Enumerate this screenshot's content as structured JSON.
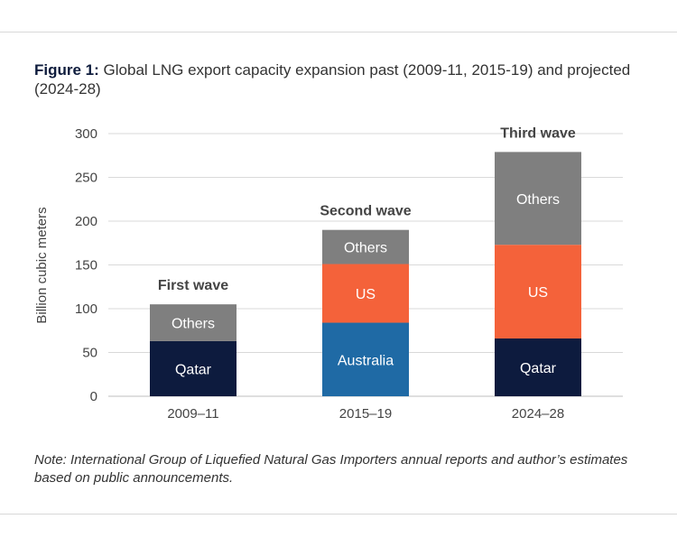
{
  "caption": {
    "label": "Figure 1:",
    "text": "Global LNG export capacity expansion past (2009-11, 2015-19) and projected (2024-28)"
  },
  "note": "Note: International Group of Liquefied Natural Gas Importers annual reports and author’s estimates based on public announcements.",
  "colors": {
    "Qatar": "#0d1b3e",
    "Australia": "#1f6aa5",
    "US": "#f4623a",
    "Others": "#7f7f7f",
    "segment_text": "#ffffff",
    "axis_text": "#444444",
    "wave_text": "#444444",
    "grid": "#d9d9d9"
  },
  "chart_data": {
    "type": "bar",
    "stacked": true,
    "title": "Global LNG export capacity expansion past (2009-11, 2015-19) and projected (2024-28)",
    "xlabel": "",
    "ylabel": "Billion cubic meters",
    "ylim": [
      0,
      300
    ],
    "yticks": [
      0,
      50,
      100,
      150,
      200,
      250,
      300
    ],
    "grid": true,
    "categories": [
      "2009–11",
      "2015–19",
      "2024–28"
    ],
    "wave_labels": [
      "First wave",
      "Second wave",
      "Third wave"
    ],
    "bars": [
      {
        "category": "2009–11",
        "segments": [
          {
            "name": "Qatar",
            "value": 63
          },
          {
            "name": "Others",
            "value": 42
          }
        ]
      },
      {
        "category": "2015–19",
        "segments": [
          {
            "name": "Australia",
            "value": 84
          },
          {
            "name": "US",
            "value": 67
          },
          {
            "name": "Others",
            "value": 39
          }
        ]
      },
      {
        "category": "2024–28",
        "segments": [
          {
            "name": "Qatar",
            "value": 66
          },
          {
            "name": "US",
            "value": 107
          },
          {
            "name": "Others",
            "value": 106
          }
        ]
      }
    ]
  }
}
